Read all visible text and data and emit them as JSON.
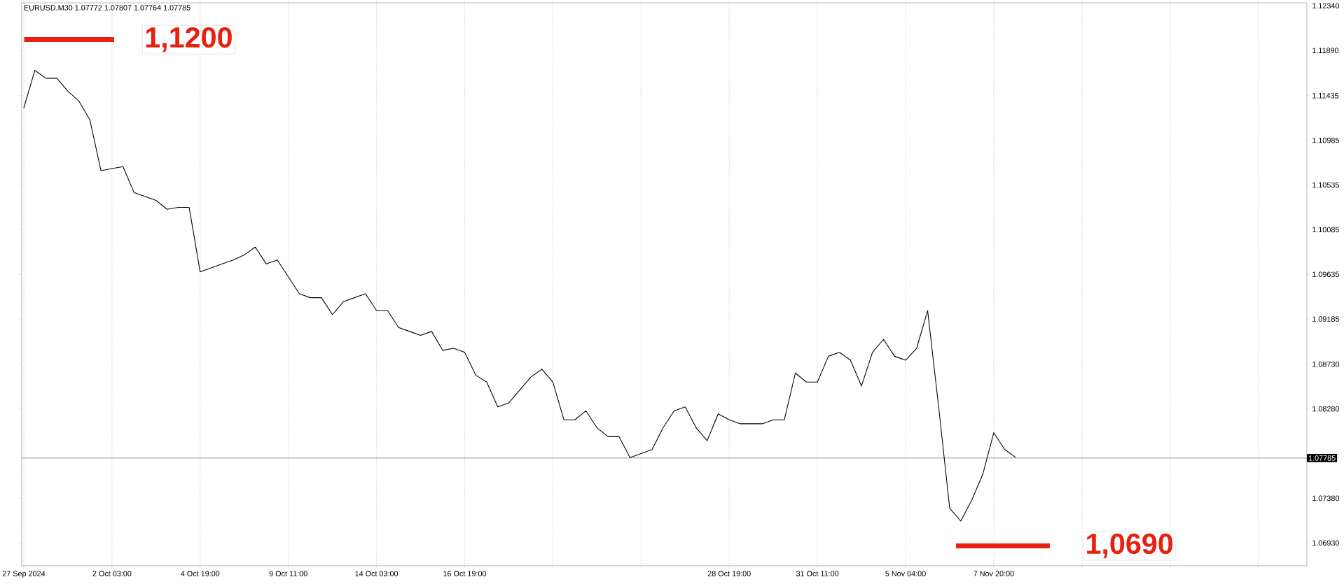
{
  "chart_data": {
    "type": "line",
    "title": "EURUSD,M30 1.07772 1.07807 1.07764 1.07785",
    "categories": [
      "27 Sep 2024",
      null,
      null,
      null,
      null,
      null,
      null,
      null,
      "2 Oct 03:00",
      null,
      null,
      null,
      null,
      null,
      null,
      null,
      "4 Oct 19:00",
      null,
      null,
      null,
      null,
      null,
      null,
      null,
      "9 Oct 11:00",
      null,
      null,
      null,
      null,
      null,
      null,
      null,
      "14 Oct 03:00",
      null,
      null,
      null,
      null,
      null,
      null,
      null,
      "16 Oct 19:00",
      null,
      null,
      null,
      null,
      null,
      null,
      null,
      null,
      null,
      null,
      null,
      null,
      null,
      null,
      null,
      null,
      null,
      null,
      null,
      null,
      null,
      null,
      null,
      "28 Oct 19:00",
      null,
      null,
      null,
      null,
      null,
      null,
      null,
      "31 Oct 11:00",
      null,
      null,
      null,
      null,
      null,
      null,
      null,
      "5 Nov 04:00",
      null,
      null,
      null,
      null,
      null,
      null,
      null,
      "7 Nov 20:00",
      null,
      null,
      null,
      null,
      null,
      null,
      null,
      null,
      null,
      null,
      null,
      null,
      null,
      null,
      null,
      null,
      null,
      null,
      null,
      null,
      null,
      null,
      null,
      null,
      null,
      null,
      null,
      null
    ],
    "series": [
      {
        "color": "#000000",
        "values": [
          1.1131,
          1.1169,
          1.1161,
          1.1161,
          1.1148,
          1.1138,
          1.1119,
          1.1068,
          1.107,
          1.1072,
          1.1046,
          1.1042,
          1.1038,
          1.1029,
          1.1031,
          1.1031,
          1.0966,
          1.097,
          1.0974,
          1.0978,
          1.0983,
          1.0991,
          1.0974,
          1.0978,
          1.0961,
          1.0944,
          1.094,
          1.094,
          1.0923,
          1.0936,
          1.094,
          1.0944,
          1.0927,
          1.0927,
          1.091,
          1.0906,
          1.0902,
          1.0906,
          1.0887,
          1.0889,
          1.0885,
          1.0862,
          1.0855,
          1.083,
          1.0834,
          1.0847,
          1.086,
          1.0868,
          1.0855,
          1.0817,
          1.0817,
          1.0826,
          1.0809,
          1.08,
          1.08,
          1.0779,
          1.0783,
          1.0787,
          1.0809,
          1.0826,
          1.083,
          1.0809,
          1.0796,
          1.0823,
          1.0817,
          1.0813,
          1.0813,
          1.0813,
          1.0817,
          1.0817,
          1.0864,
          1.0855,
          1.0855,
          1.0881,
          1.0885,
          1.0877,
          1.0851,
          1.0885,
          1.0898,
          1.0881,
          1.0877,
          1.0889,
          1.0927,
          1.083,
          1.0728,
          1.0715,
          1.0736,
          1.0762,
          1.0804,
          1.0787,
          1.0779,
          null,
          null,
          null,
          null,
          null,
          null,
          null,
          null,
          null,
          null,
          null,
          null,
          null,
          null,
          null,
          null,
          null,
          null,
          null,
          null,
          null,
          null,
          null,
          null,
          null,
          null
        ]
      }
    ],
    "ylim": [
      1.067,
      1.1237
    ],
    "yticks": [
      {
        "value": 1.1234,
        "label": "1.12340"
      },
      {
        "value": 1.1189,
        "label": "1.11890"
      },
      {
        "value": 1.11435,
        "label": "1.11435"
      },
      {
        "value": 1.10985,
        "label": "1.10985"
      },
      {
        "value": 1.10535,
        "label": "1.10535"
      },
      {
        "value": 1.10085,
        "label": "1.10085"
      },
      {
        "value": 1.09635,
        "label": "1.09635"
      },
      {
        "value": 1.09185,
        "label": "1.09185"
      },
      {
        "value": 1.0873,
        "label": "1.08730"
      },
      {
        "value": 1.0828,
        "label": "1.08280"
      },
      {
        "value": 1.0738,
        "label": "1.07380"
      },
      {
        "value": 1.0693,
        "label": "1.06930"
      }
    ],
    "ref_lines": [
      {
        "axis": "y",
        "value": 1.07785,
        "label": "1.07785",
        "color": "#808080"
      },
      {
        "axis": "y",
        "value": 1.12,
        "label": "1,1200",
        "color": "#e8200f"
      },
      {
        "axis": "y",
        "value": 1.069,
        "label": "1,0690",
        "color": "#e8200f"
      }
    ],
    "grid": "x",
    "marker": "none",
    "line_style": "solid"
  }
}
